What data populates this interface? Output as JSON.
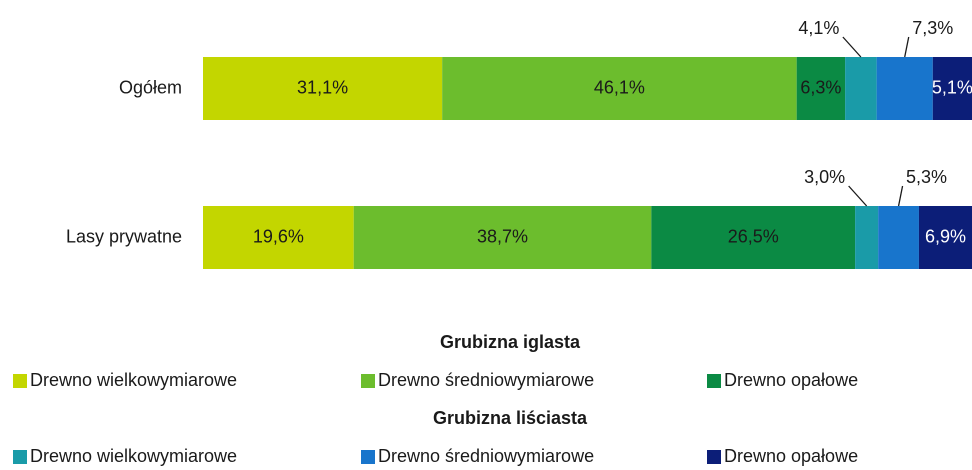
{
  "chart_data": {
    "type": "stacked-bar-horizontal",
    "categories": [
      "Ogółem",
      "Lasy prywatne"
    ],
    "xlim": [
      0,
      100
    ],
    "legend_groups": [
      "Grubizna iglasta",
      "Grubizna liściasta"
    ],
    "series": [
      {
        "name": "Drewno wielkowymiarowe",
        "color": "#c3d600",
        "values": [
          31.1,
          19.6
        ],
        "value_labels": [
          "31,1%",
          "19,6%"
        ]
      },
      {
        "name": "Drewno średniowymiarowe",
        "color": "#6cbd2d",
        "values": [
          46.1,
          38.7
        ],
        "value_labels": [
          "46,1%",
          "38,7%"
        ]
      },
      {
        "name": "Drewno opałowe",
        "color": "#0b8a44",
        "values": [
          6.3,
          26.5
        ],
        "value_labels": [
          "6,3%",
          "26,5%"
        ]
      },
      {
        "name": "Drewno wielkowymiarowe",
        "color": "#1a9ba8",
        "values": [
          4.1,
          3.0
        ],
        "value_labels": [
          "4,1%",
          "3,0%"
        ]
      },
      {
        "name": "Drewno średniowymiarowe",
        "color": "#1875cc",
        "values": [
          7.3,
          5.3
        ],
        "value_labels": [
          "7,3%",
          "5,3%"
        ]
      },
      {
        "name": "Drewno opałowe",
        "color": "#0c1e78",
        "values": [
          5.1,
          6.9
        ],
        "value_labels": [
          "5,1%",
          "6,9%"
        ]
      }
    ]
  }
}
